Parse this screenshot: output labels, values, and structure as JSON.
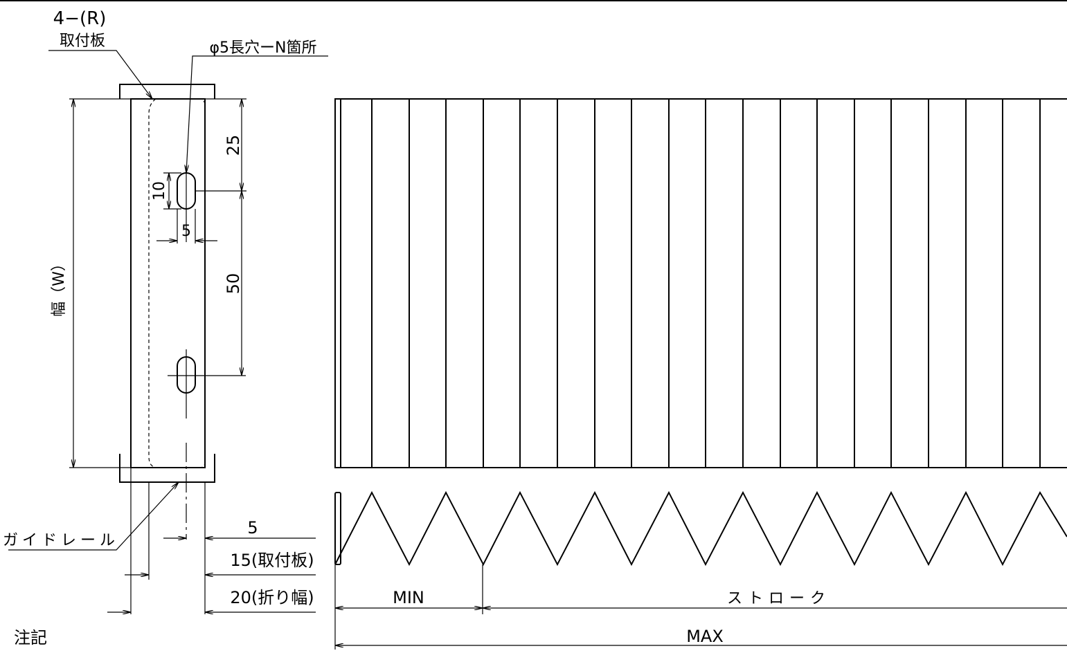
{
  "drawing": {
    "part_label": "4−(R)",
    "mounting_plate_label": "取付板",
    "slot_label": "φ5長穴ーN箇所",
    "width_label": "幅（W）",
    "guide_rail_label": "ガイドレール",
    "notes_label": "注記"
  },
  "dimensions": {
    "top_offset": "25",
    "slot_length": "10",
    "slot_width": "5",
    "slot_pitch": "50",
    "edge_offset": "5",
    "plate_width": "15(取付板)",
    "fold_width": "20(折り幅)",
    "min_label": "MIN",
    "stroke_label": "ストローク",
    "max_label": "MAX"
  }
}
